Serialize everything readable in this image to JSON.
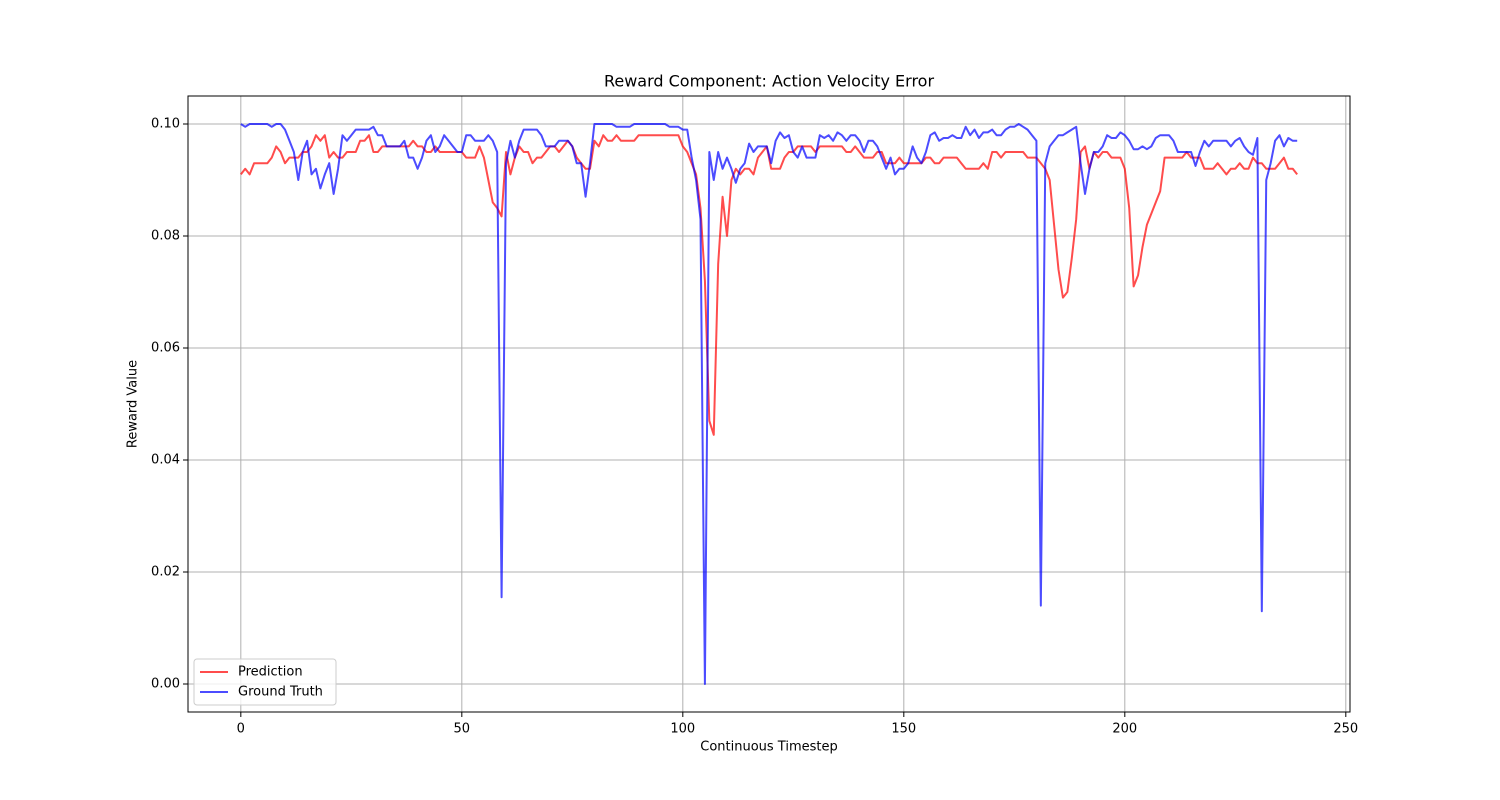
{
  "chart_data": {
    "type": "line",
    "title": "Reward Component: Action Velocity Error",
    "x_label": "Continuous Timestep",
    "y_label": "Reward Value",
    "xlim": [
      -11.95,
      250.95
    ],
    "ylim": [
      -0.005,
      0.105
    ],
    "xticks": [
      0,
      50,
      100,
      150,
      200,
      250
    ],
    "yticks": [
      {
        "value": 0,
        "label": "0.00"
      },
      {
        "value": 0.02,
        "label": "0.02"
      },
      {
        "value": 0.04,
        "label": "0.04"
      },
      {
        "value": 0.06,
        "label": "0.06"
      },
      {
        "value": 0.08,
        "label": "0.08"
      },
      {
        "value": 0.1,
        "label": "0.10"
      }
    ],
    "grid": true,
    "legend": "lower left",
    "x": [
      0,
      1,
      2,
      3,
      4,
      5,
      6,
      7,
      8,
      9,
      10,
      11,
      12,
      13,
      14,
      15,
      16,
      17,
      18,
      19,
      20,
      21,
      22,
      23,
      24,
      25,
      26,
      27,
      28,
      29,
      30,
      31,
      32,
      33,
      34,
      35,
      36,
      37,
      38,
      39,
      40,
      41,
      42,
      43,
      44,
      45,
      46,
      47,
      48,
      49,
      50,
      51,
      52,
      53,
      54,
      55,
      56,
      57,
      58,
      59,
      60,
      61,
      62,
      63,
      64,
      65,
      66,
      67,
      68,
      69,
      70,
      71,
      72,
      73,
      74,
      75,
      76,
      77,
      78,
      79,
      80,
      81,
      82,
      83,
      84,
      85,
      86,
      87,
      88,
      89,
      90,
      91,
      92,
      93,
      94,
      95,
      96,
      97,
      98,
      99,
      100,
      101,
      102,
      103,
      104,
      105,
      106,
      107,
      108,
      109,
      110,
      111,
      112,
      113,
      114,
      115,
      116,
      117,
      118,
      119,
      120,
      121,
      122,
      123,
      124,
      125,
      126,
      127,
      128,
      129,
      130,
      131,
      132,
      133,
      134,
      135,
      136,
      137,
      138,
      139,
      140,
      141,
      142,
      143,
      144,
      145,
      146,
      147,
      148,
      149,
      150,
      151,
      152,
      153,
      154,
      155,
      156,
      157,
      158,
      159,
      160,
      161,
      162,
      163,
      164,
      165,
      166,
      167,
      168,
      169,
      170,
      171,
      172,
      173,
      174,
      175,
      176,
      177,
      178,
      179,
      180,
      181,
      182,
      183,
      184,
      185,
      186,
      187,
      188,
      189,
      190,
      191,
      192,
      193,
      194,
      195,
      196,
      197,
      198,
      199,
      200,
      201,
      202,
      203,
      204,
      205,
      206,
      207,
      208,
      209,
      210,
      211,
      212,
      213,
      214,
      215,
      216,
      217,
      218,
      219,
      220,
      221,
      222,
      223,
      224,
      225,
      226,
      227,
      228,
      229,
      230,
      231,
      232,
      233,
      234,
      235,
      236,
      237,
      238,
      239
    ],
    "series": [
      {
        "name": "Prediction",
        "color": "#ff0000",
        "values": [
          0.091,
          0.092,
          0.091,
          0.093,
          0.093,
          0.093,
          0.093,
          0.094,
          0.096,
          0.095,
          0.093,
          0.094,
          0.094,
          0.094,
          0.095,
          0.095,
          0.096,
          0.098,
          0.097,
          0.098,
          0.094,
          0.095,
          0.094,
          0.094,
          0.095,
          0.095,
          0.095,
          0.097,
          0.097,
          0.098,
          0.095,
          0.095,
          0.096,
          0.096,
          0.096,
          0.096,
          0.096,
          0.096,
          0.096,
          0.097,
          0.096,
          0.096,
          0.095,
          0.095,
          0.096,
          0.095,
          0.095,
          0.095,
          0.095,
          0.095,
          0.095,
          0.094,
          0.094,
          0.094,
          0.096,
          0.094,
          0.09,
          0.086,
          0.085,
          0.0835,
          0.095,
          0.091,
          0.094,
          0.096,
          0.095,
          0.095,
          0.093,
          0.094,
          0.094,
          0.095,
          0.096,
          0.096,
          0.095,
          0.096,
          0.097,
          0.096,
          0.094,
          0.093,
          0.092,
          0.092,
          0.097,
          0.096,
          0.098,
          0.097,
          0.097,
          0.098,
          0.097,
          0.097,
          0.097,
          0.097,
          0.098,
          0.098,
          0.098,
          0.098,
          0.098,
          0.098,
          0.098,
          0.098,
          0.098,
          0.098,
          0.096,
          0.095,
          0.093,
          0.091,
          0.085,
          0.072,
          0.047,
          0.0445,
          0.075,
          0.087,
          0.08,
          0.09,
          0.092,
          0.091,
          0.092,
          0.092,
          0.091,
          0.094,
          0.095,
          0.096,
          0.092,
          0.092,
          0.092,
          0.094,
          0.095,
          0.095,
          0.096,
          0.096,
          0.096,
          0.096,
          0.095,
          0.096,
          0.096,
          0.096,
          0.096,
          0.096,
          0.096,
          0.095,
          0.095,
          0.096,
          0.095,
          0.094,
          0.094,
          0.094,
          0.095,
          0.095,
          0.093,
          0.093,
          0.093,
          0.094,
          0.093,
          0.093,
          0.093,
          0.093,
          0.093,
          0.094,
          0.094,
          0.093,
          0.093,
          0.094,
          0.094,
          0.094,
          0.094,
          0.093,
          0.092,
          0.092,
          0.092,
          0.092,
          0.093,
          0.092,
          0.095,
          0.095,
          0.094,
          0.095,
          0.095,
          0.095,
          0.095,
          0.095,
          0.094,
          0.094,
          0.094,
          0.093,
          0.092,
          0.09,
          0.082,
          0.074,
          0.069,
          0.07,
          0.076,
          0.083,
          0.095,
          0.096,
          0.092,
          0.095,
          0.094,
          0.095,
          0.095,
          0.094,
          0.094,
          0.094,
          0.092,
          0.085,
          0.071,
          0.073,
          0.078,
          0.082,
          0.084,
          0.086,
          0.088,
          0.094,
          0.094,
          0.094,
          0.094,
          0.094,
          0.095,
          0.094,
          0.094,
          0.094,
          0.092,
          0.092,
          0.092,
          0.093,
          0.092,
          0.091,
          0.092,
          0.092,
          0.093,
          0.092,
          0.092,
          0.094,
          0.093,
          0.093,
          0.092,
          0.092,
          0.092,
          0.093,
          0.094,
          0.092,
          0.092,
          0.091
        ]
      },
      {
        "name": "Ground Truth",
        "color": "#0000ff",
        "values": [
          0.1,
          0.0995,
          0.1,
          0.1,
          0.1,
          0.1,
          0.1,
          0.0995,
          0.1,
          0.1,
          0.099,
          0.097,
          0.095,
          0.09,
          0.095,
          0.097,
          0.091,
          0.092,
          0.0885,
          0.091,
          0.093,
          0.0875,
          0.092,
          0.098,
          0.097,
          0.098,
          0.099,
          0.099,
          0.099,
          0.099,
          0.0995,
          0.098,
          0.098,
          0.096,
          0.096,
          0.096,
          0.096,
          0.097,
          0.094,
          0.094,
          0.092,
          0.094,
          0.097,
          0.098,
          0.095,
          0.096,
          0.098,
          0.097,
          0.096,
          0.095,
          0.095,
          0.098,
          0.098,
          0.097,
          0.097,
          0.097,
          0.098,
          0.097,
          0.095,
          0.0155,
          0.093,
          0.097,
          0.094,
          0.097,
          0.099,
          0.099,
          0.099,
          0.099,
          0.098,
          0.096,
          0.096,
          0.096,
          0.097,
          0.097,
          0.097,
          0.096,
          0.093,
          0.093,
          0.087,
          0.093,
          0.1,
          0.1,
          0.1,
          0.1,
          0.1,
          0.0995,
          0.0995,
          0.0995,
          0.0995,
          0.1,
          0.1,
          0.1,
          0.1,
          0.1,
          0.1,
          0.1,
          0.1,
          0.0995,
          0.0995,
          0.0995,
          0.099,
          0.099,
          0.094,
          0.09,
          0.083,
          0.0,
          0.095,
          0.09,
          0.095,
          0.092,
          0.094,
          0.092,
          0.0895,
          0.092,
          0.093,
          0.0965,
          0.095,
          0.096,
          0.096,
          0.096,
          0.093,
          0.097,
          0.0985,
          0.0975,
          0.098,
          0.095,
          0.094,
          0.096,
          0.094,
          0.094,
          0.094,
          0.098,
          0.0975,
          0.098,
          0.097,
          0.0985,
          0.098,
          0.097,
          0.098,
          0.098,
          0.097,
          0.095,
          0.097,
          0.097,
          0.096,
          0.094,
          0.092,
          0.094,
          0.091,
          0.092,
          0.092,
          0.093,
          0.096,
          0.094,
          0.093,
          0.095,
          0.098,
          0.0985,
          0.097,
          0.0975,
          0.0975,
          0.098,
          0.0975,
          0.0975,
          0.0995,
          0.098,
          0.099,
          0.0975,
          0.0985,
          0.0985,
          0.099,
          0.098,
          0.098,
          0.099,
          0.0995,
          0.0995,
          0.1,
          0.0995,
          0.099,
          0.098,
          0.097,
          0.014,
          0.093,
          0.096,
          0.097,
          0.098,
          0.098,
          0.0985,
          0.099,
          0.0995,
          0.093,
          0.0875,
          0.092,
          0.095,
          0.095,
          0.096,
          0.098,
          0.0975,
          0.0975,
          0.0985,
          0.098,
          0.097,
          0.0955,
          0.0955,
          0.096,
          0.0955,
          0.096,
          0.0975,
          0.098,
          0.098,
          0.098,
          0.097,
          0.095,
          0.095,
          0.095,
          0.095,
          0.0925,
          0.095,
          0.097,
          0.096,
          0.097,
          0.097,
          0.097,
          0.097,
          0.096,
          0.097,
          0.0975,
          0.096,
          0.095,
          0.0945,
          0.0975,
          0.013,
          0.09,
          0.093,
          0.097,
          0.098,
          0.096,
          0.0975,
          0.097,
          0.097
        ]
      }
    ]
  }
}
